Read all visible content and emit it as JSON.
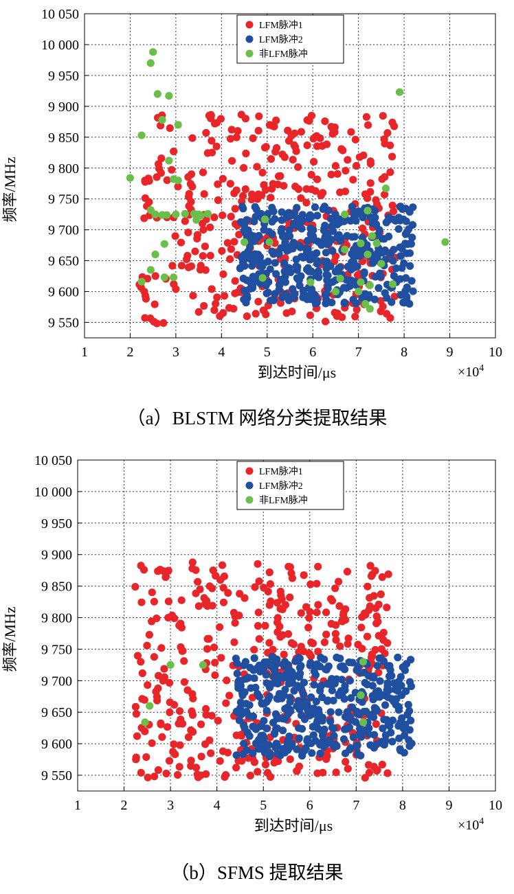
{
  "chart_data": [
    {
      "type": "scatter",
      "panel": "a",
      "caption": "（a）BLSTM 网络分类提取结果",
      "xlabel": "到达时间/μs",
      "ylabel": "频率/MHz",
      "x_multiplier": "×10",
      "x_multiplier_exp": "4",
      "xlim": [
        1,
        10
      ],
      "ylim": [
        9525,
        10050
      ],
      "xticks": [
        "1",
        "2",
        "3",
        "4",
        "5",
        "6",
        "7",
        "8",
        "9",
        "10"
      ],
      "yticks": [
        "9 550",
        "9 600",
        "9 650",
        "9 700",
        "9 750",
        "9 800",
        "9 850",
        "9 900",
        "9 950",
        "10 000",
        "10 050"
      ],
      "grid": true,
      "legend_position": "top",
      "series": [
        {
          "name": "LFM脉冲1",
          "color": "#e8262a",
          "x_range": [
            2.2,
            7.8
          ],
          "y_range": [
            9548,
            9888
          ],
          "count": 380
        },
        {
          "name": "LFM脉冲2",
          "color": "#1f4f9e",
          "x_range": [
            4.4,
            8.2
          ],
          "y_range": [
            9580,
            9738
          ],
          "count": 420
        },
        {
          "name": "非LFM脉冲",
          "color": "#6abf4b",
          "points": [
            [
              2.5,
              9988
            ],
            [
              2.45,
              9970
            ],
            [
              2.6,
              9920
            ],
            [
              2.85,
              9917
            ],
            [
              7.9,
              9923
            ],
            [
              2.7,
              9878
            ],
            [
              3.05,
              9870
            ],
            [
              2.25,
              9853
            ],
            [
              2.85,
              9812
            ],
            [
              2.0,
              9784
            ],
            [
              2.95,
              9782
            ],
            [
              3.05,
              9780
            ],
            [
              7.6,
              9767
            ],
            [
              2.45,
              9732
            ],
            [
              2.55,
              9725
            ],
            [
              2.7,
              9724
            ],
            [
              2.8,
              9724
            ],
            [
              3.0,
              9725
            ],
            [
              3.2,
              9726
            ],
            [
              3.4,
              9726
            ],
            [
              3.5,
              9725
            ],
            [
              3.55,
              9723
            ],
            [
              3.7,
              9726
            ],
            [
              3.45,
              9716
            ],
            [
              4.95,
              9717
            ],
            [
              6.7,
              9725
            ],
            [
              7.2,
              9731
            ],
            [
              2.75,
              9677
            ],
            [
              4.5,
              9680
            ],
            [
              5.05,
              9680
            ],
            [
              7.05,
              9678
            ],
            [
              7.4,
              9678
            ],
            [
              8.9,
              9680
            ],
            [
              2.55,
              9660
            ],
            [
              7.3,
              9690
            ],
            [
              7.2,
              9660
            ],
            [
              2.45,
              9635
            ],
            [
              2.75,
              9623
            ],
            [
              2.95,
              9623
            ],
            [
              2.25,
              9616
            ],
            [
              4.9,
              9622
            ],
            [
              5.95,
              9615
            ],
            [
              6.6,
              9621
            ],
            [
              7.05,
              9615
            ],
            [
              7.25,
              9610
            ],
            [
              7.75,
              9612
            ],
            [
              6.5,
              9600
            ],
            [
              7.0,
              9600
            ],
            [
              7.15,
              9580
            ],
            [
              7.25,
              9572
            ],
            [
              6.7,
              9668
            ],
            [
              7.5,
              9645
            ]
          ]
        }
      ]
    },
    {
      "type": "scatter",
      "panel": "b",
      "caption": "（b）SFMS 提取结果",
      "xlabel": "到达时间/μs",
      "ylabel": "频率/MHz",
      "x_multiplier": "×10",
      "x_multiplier_exp": "4",
      "xlim": [
        1,
        10
      ],
      "ylim": [
        9525,
        10050
      ],
      "xticks": [
        "1",
        "2",
        "3",
        "4",
        "5",
        "6",
        "7",
        "8",
        "9",
        "10"
      ],
      "yticks": [
        "9 550",
        "9 600",
        "9 650",
        "9 700",
        "9 750",
        "9 800",
        "9 850",
        "9 900",
        "9 950",
        "10 000",
        "10 050"
      ],
      "grid": true,
      "legend_position": "top",
      "series": [
        {
          "name": "LFM脉冲1",
          "color": "#e8262a",
          "x_range": [
            2.2,
            7.8
          ],
          "y_range": [
            9546,
            9888
          ],
          "count": 400
        },
        {
          "name": "LFM脉冲2",
          "color": "#1f4f9e",
          "x_range": [
            4.4,
            8.2
          ],
          "y_range": [
            9580,
            9738
          ],
          "count": 430
        },
        {
          "name": "非LFM脉冲",
          "color": "#6abf4b",
          "points": [
            [
              3.0,
              9725
            ],
            [
              3.7,
              9725
            ],
            [
              7.15,
              9730
            ],
            [
              7.1,
              9677
            ],
            [
              2.55,
              9660
            ],
            [
              2.45,
              9634
            ],
            [
              7.15,
              9634
            ]
          ]
        }
      ]
    }
  ]
}
